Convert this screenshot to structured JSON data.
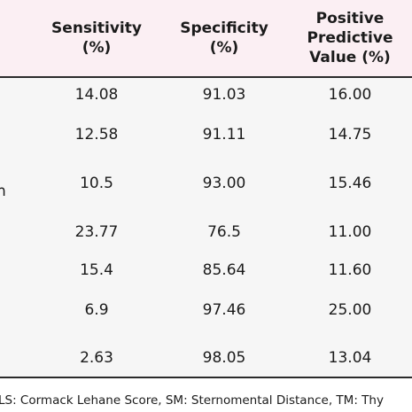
{
  "table": {
    "headers": {
      "sensitivity": [
        "Sensitivity",
        "(%)"
      ],
      "specificity": [
        "Specificity",
        "(%)"
      ],
      "ppv": [
        "Positive",
        "Predictive",
        "Value (%)"
      ]
    },
    "row_label_fragment": "n",
    "rows": [
      {
        "sensitivity": "14.08",
        "specificity": "91.03",
        "ppv": "16.00"
      },
      {
        "sensitivity": "12.58",
        "specificity": "91.11",
        "ppv": "14.75"
      },
      {
        "sensitivity": "10.5",
        "specificity": "93.00",
        "ppv": "15.46"
      },
      {
        "sensitivity": "23.77",
        "specificity": "76.5",
        "ppv": "11.00"
      },
      {
        "sensitivity": "15.4",
        "specificity": "85.64",
        "ppv": "11.60"
      },
      {
        "sensitivity": "6.9",
        "specificity": "97.46",
        "ppv": "25.00"
      },
      {
        "sensitivity": "2.63",
        "specificity": "98.05",
        "ppv": "13.04"
      }
    ]
  },
  "footnote": "LS: Cormack Lehane Score, SM: Sternomental Distance, TM: Thy",
  "colors": {
    "header_background": "#fbeff3",
    "body_background": "#f6f6f6",
    "rule": "#2b2b2b"
  }
}
